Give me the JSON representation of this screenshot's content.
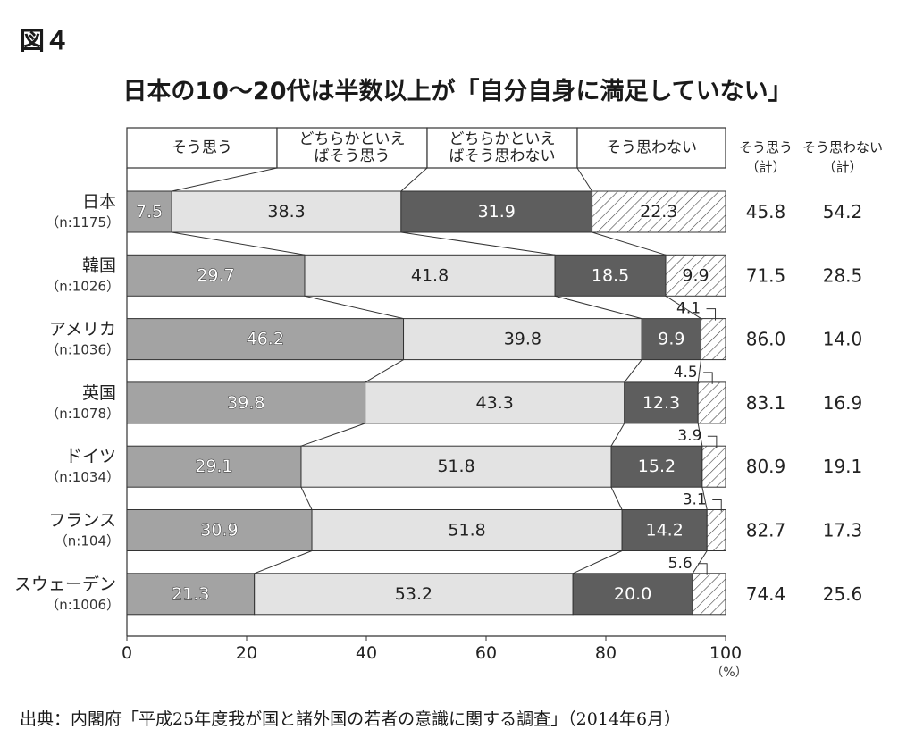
{
  "figure_label": "図４",
  "chart_title": "日本の10〜20代は半数以上が「自分自身に満足していない」",
  "source": "出典：内閣府「平成25年度我が国と諸外国の若者の意識に関する調査」（2014年6月）",
  "colors": {
    "agree": "#a3a3a3",
    "somewhat_agree": "#e3e3e3",
    "somewhat_disagree": "#5e5e5e",
    "disagree_hatch": "#444444"
  },
  "chart_data": {
    "type": "bar",
    "orientation": "horizontal",
    "stacked": true,
    "title": "日本の10〜20代は半数以上が「自分自身に満足していない」",
    "headers": [
      [
        "そう思う"
      ],
      [
        "どちらかといえ",
        "ばそう思う"
      ],
      [
        "どちらかといえ",
        "ばそう思わない"
      ],
      [
        "そう思わない"
      ]
    ],
    "total_headers": [
      [
        "そう思う",
        "（計）"
      ],
      [
        "そう思わない",
        "（計）"
      ]
    ],
    "categories": [
      {
        "name": "日本",
        "n": "（n:1175）"
      },
      {
        "name": "韓国",
        "n": "（n:1026）"
      },
      {
        "name": "アメリカ",
        "n": "（n:1036）"
      },
      {
        "name": "英国",
        "n": "（n:1078）"
      },
      {
        "name": "ドイツ",
        "n": "（n:1034）"
      },
      {
        "name": "フランス",
        "n": "（n:104）"
      },
      {
        "name": "スウェーデン",
        "n": "（n:1006）"
      }
    ],
    "series": [
      {
        "name": "そう思う",
        "values": [
          7.5,
          29.7,
          46.2,
          39.8,
          29.1,
          30.9,
          21.3
        ],
        "labels": [
          "7.5",
          "29.7",
          "46.2",
          "39.8",
          "29.1",
          "30.9",
          "21.3"
        ]
      },
      {
        "name": "どちらかといえばそう思う",
        "values": [
          38.3,
          41.8,
          39.8,
          43.3,
          51.8,
          51.8,
          53.2
        ],
        "labels": [
          "38.3",
          "41.8",
          "39.8",
          "43.3",
          "51.8",
          "51.8",
          "53.2"
        ]
      },
      {
        "name": "どちらかといえばそう思わない",
        "values": [
          31.9,
          18.5,
          9.9,
          12.3,
          15.2,
          14.2,
          20.0
        ],
        "labels": [
          "31.9",
          "18.5",
          "9.9",
          "12.3",
          "15.2",
          "14.2",
          "20.0"
        ]
      },
      {
        "name": "そう思わない",
        "values": [
          22.3,
          9.9,
          4.1,
          4.5,
          3.9,
          3.1,
          5.6
        ],
        "labels": [
          "22.3",
          "9.9",
          "4.1",
          "4.5",
          "3.9",
          "3.1",
          "5.6"
        ]
      }
    ],
    "totals_agree": [
      "45.8",
      "71.5",
      "86.0",
      "83.1",
      "80.9",
      "82.7",
      "74.4"
    ],
    "totals_disagree": [
      "54.2",
      "28.5",
      "14.0",
      "16.9",
      "19.1",
      "17.3",
      "25.6"
    ],
    "x_ticks": [
      "0",
      "20",
      "40",
      "60",
      "80",
      "100"
    ],
    "x_unit": "（%）",
    "xlim": [
      0,
      100
    ]
  }
}
